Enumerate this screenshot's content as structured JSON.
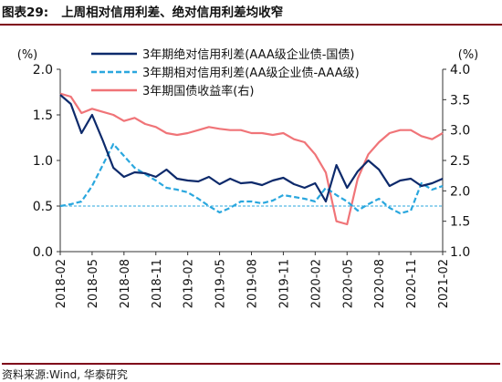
{
  "header": {
    "figure_label": "图表29:",
    "title": "上周相对信用利差、绝对信用利差均收窄"
  },
  "footer": {
    "source": "资料来源:Wind, 华泰研究"
  },
  "chart_data": {
    "type": "line",
    "left_unit": "(%)",
    "right_unit": "(%)",
    "y_left": {
      "min": 0.0,
      "max": 2.0,
      "ticks": [
        "0.0",
        "0.5",
        "1.0",
        "1.5",
        "2.0"
      ],
      "tick_values": [
        0,
        0.5,
        1.0,
        1.5,
        2.0
      ]
    },
    "y_right": {
      "min": 1.0,
      "max": 4.0,
      "ticks": [
        "1.0",
        "1.5",
        "2.0",
        "2.5",
        "3.0",
        "3.5",
        "4.0"
      ],
      "tick_values": [
        1.0,
        1.5,
        2.0,
        2.5,
        3.0,
        3.5,
        4.0
      ]
    },
    "x_ticks": [
      "2018-02",
      "2018-05",
      "2018-08",
      "2018-11",
      "2019-02",
      "2019-05",
      "2019-08",
      "2019-11",
      "2020-02",
      "2020-05",
      "2020-08",
      "2020-11",
      "2021-02"
    ],
    "x_range": [
      "2018-02",
      "2021-02"
    ],
    "reference_line": {
      "axis": "left",
      "value": 0.5,
      "color": "#2aa7de"
    },
    "grid": false,
    "legend_position": "top-center",
    "series": [
      {
        "name": "3年期绝对信用利差(AAA级企业债-国债)",
        "axis": "left",
        "color": "#0d2a6b",
        "style": "solid",
        "x": [
          "2018-02",
          "2018-03",
          "2018-04",
          "2018-05",
          "2018-06",
          "2018-07",
          "2018-08",
          "2018-09",
          "2018-10",
          "2018-11",
          "2018-12",
          "2019-01",
          "2019-02",
          "2019-03",
          "2019-04",
          "2019-05",
          "2019-06",
          "2019-07",
          "2019-08",
          "2019-09",
          "2019-10",
          "2019-11",
          "2019-12",
          "2020-01",
          "2020-02",
          "2020-03",
          "2020-04",
          "2020-05",
          "2020-06",
          "2020-07",
          "2020-08",
          "2020-09",
          "2020-10",
          "2020-11",
          "2020-12",
          "2021-01",
          "2021-02"
        ],
        "y": [
          1.72,
          1.62,
          1.3,
          1.5,
          1.22,
          0.92,
          0.82,
          0.87,
          0.86,
          0.82,
          0.9,
          0.8,
          0.78,
          0.77,
          0.82,
          0.74,
          0.8,
          0.75,
          0.76,
          0.73,
          0.78,
          0.81,
          0.74,
          0.7,
          0.75,
          0.55,
          0.95,
          0.7,
          0.88,
          1.0,
          0.9,
          0.72,
          0.78,
          0.8,
          0.72,
          0.75,
          0.8
        ]
      },
      {
        "name": "3年期相对信用利差(AA级企业债-AAA级)",
        "axis": "left",
        "color": "#2aa7de",
        "style": "dashed",
        "x": [
          "2018-02",
          "2018-03",
          "2018-04",
          "2018-05",
          "2018-06",
          "2018-07",
          "2018-08",
          "2018-09",
          "2018-10",
          "2018-11",
          "2018-12",
          "2019-01",
          "2019-02",
          "2019-03",
          "2019-04",
          "2019-05",
          "2019-06",
          "2019-07",
          "2019-08",
          "2019-09",
          "2019-10",
          "2019-11",
          "2019-12",
          "2020-01",
          "2020-02",
          "2020-03",
          "2020-04",
          "2020-05",
          "2020-06",
          "2020-07",
          "2020-08",
          "2020-09",
          "2020-10",
          "2020-11",
          "2020-12",
          "2021-01",
          "2021-02"
        ],
        "y": [
          0.5,
          0.52,
          0.55,
          0.72,
          0.95,
          1.18,
          1.05,
          0.92,
          0.85,
          0.78,
          0.7,
          0.68,
          0.65,
          0.58,
          0.5,
          0.43,
          0.48,
          0.55,
          0.55,
          0.53,
          0.56,
          0.62,
          0.6,
          0.58,
          0.55,
          0.7,
          0.62,
          0.55,
          0.45,
          0.52,
          0.58,
          0.48,
          0.42,
          0.45,
          0.75,
          0.68,
          0.72
        ]
      },
      {
        "name": "3年期国债收益率(右)",
        "axis": "right",
        "color": "#f07478",
        "style": "solid",
        "x": [
          "2018-02",
          "2018-03",
          "2018-04",
          "2018-05",
          "2018-06",
          "2018-07",
          "2018-08",
          "2018-09",
          "2018-10",
          "2018-11",
          "2018-12",
          "2019-01",
          "2019-02",
          "2019-03",
          "2019-04",
          "2019-05",
          "2019-06",
          "2019-07",
          "2019-08",
          "2019-09",
          "2019-10",
          "2019-11",
          "2019-12",
          "2020-01",
          "2020-02",
          "2020-03",
          "2020-04",
          "2020-05",
          "2020-06",
          "2020-07",
          "2020-08",
          "2020-09",
          "2020-10",
          "2020-11",
          "2020-12",
          "2021-01",
          "2021-02"
        ],
        "y": [
          3.6,
          3.55,
          3.28,
          3.35,
          3.3,
          3.25,
          3.15,
          3.2,
          3.1,
          3.05,
          2.95,
          2.92,
          2.95,
          3.0,
          3.05,
          3.02,
          3.0,
          3.0,
          2.95,
          2.95,
          2.92,
          2.95,
          2.85,
          2.8,
          2.6,
          2.3,
          1.5,
          1.45,
          2.2,
          2.6,
          2.8,
          2.95,
          3.0,
          3.0,
          2.9,
          2.85,
          2.95
        ]
      }
    ]
  }
}
